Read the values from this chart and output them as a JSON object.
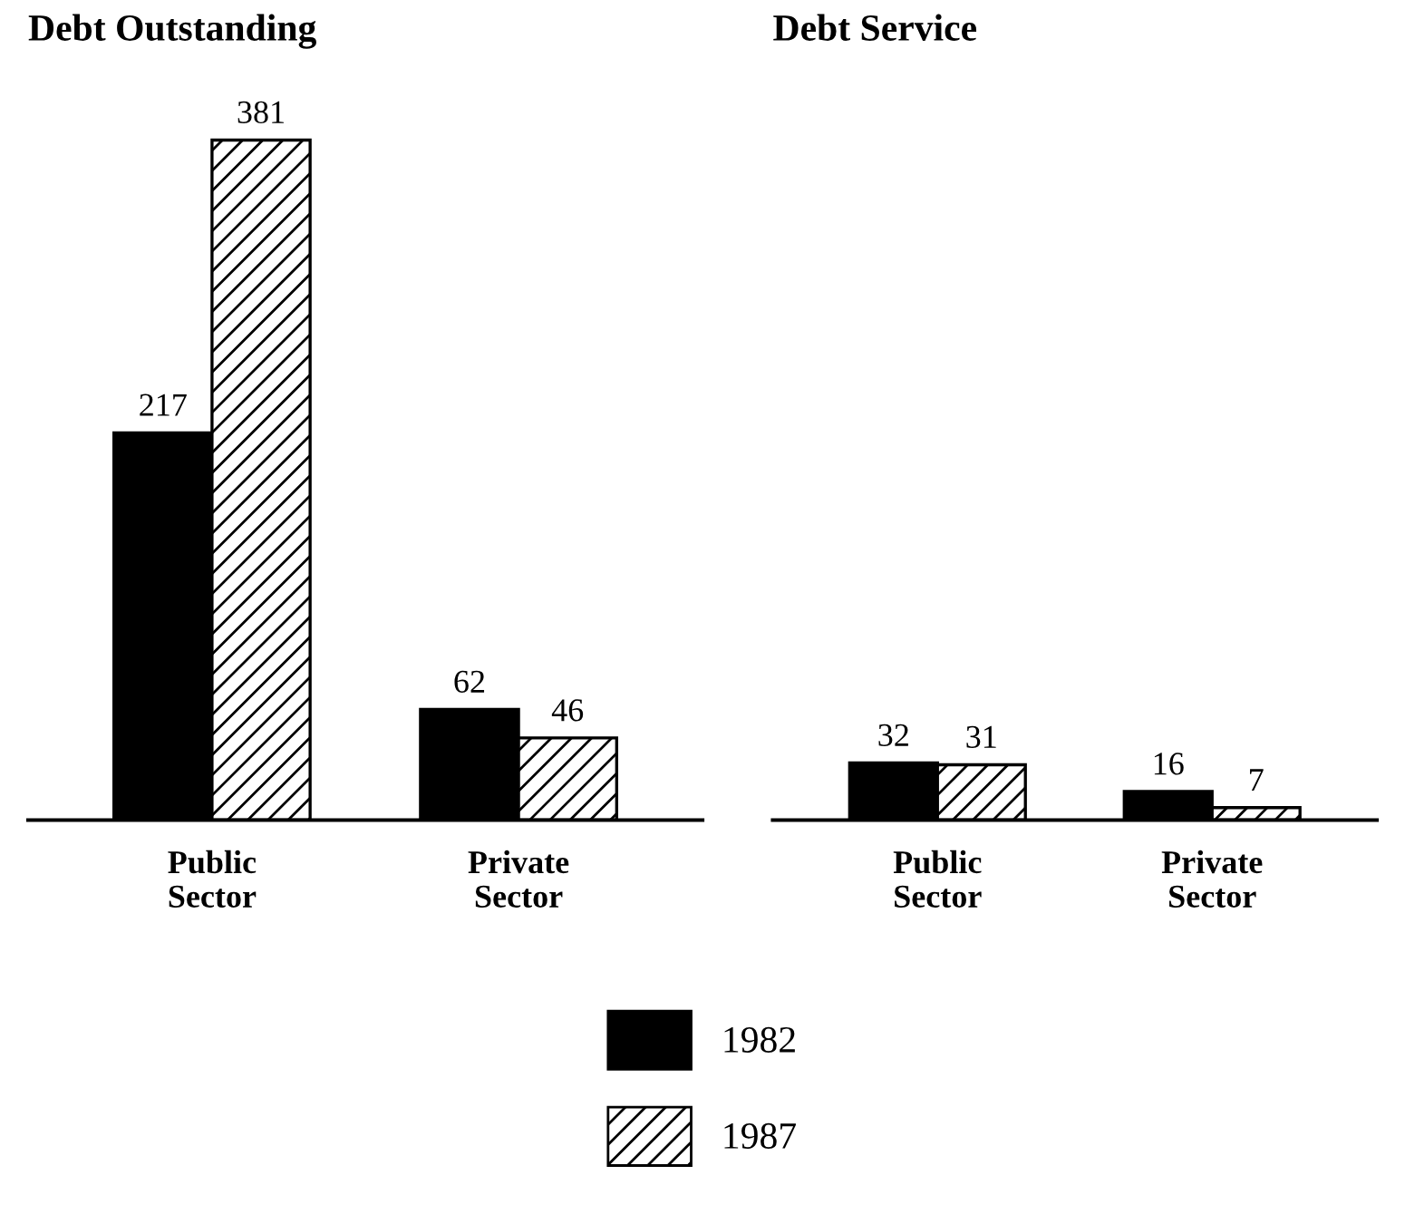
{
  "chart_data": [
    {
      "type": "bar",
      "title": "Debt Outstanding",
      "categories": [
        "Public\nSector",
        "Private\nSector"
      ],
      "series": [
        {
          "name": "1982",
          "color": "#000000",
          "values": [
            217,
            62
          ]
        },
        {
          "name": "1987",
          "color": "#000000",
          "values": [
            381,
            46
          ]
        }
      ],
      "data_labels": true,
      "legend": "bottom",
      "grid": false
    },
    {
      "type": "bar",
      "title": "Debt Service",
      "categories": [
        "Public\nSector",
        "Private\nSector"
      ],
      "series": [
        {
          "name": "1982",
          "color": "#000000",
          "values": [
            32,
            16
          ]
        },
        {
          "name": "1987",
          "color": "#000000",
          "values": [
            31,
            7
          ]
        }
      ],
      "data_labels": true,
      "grid": false
    }
  ]
}
